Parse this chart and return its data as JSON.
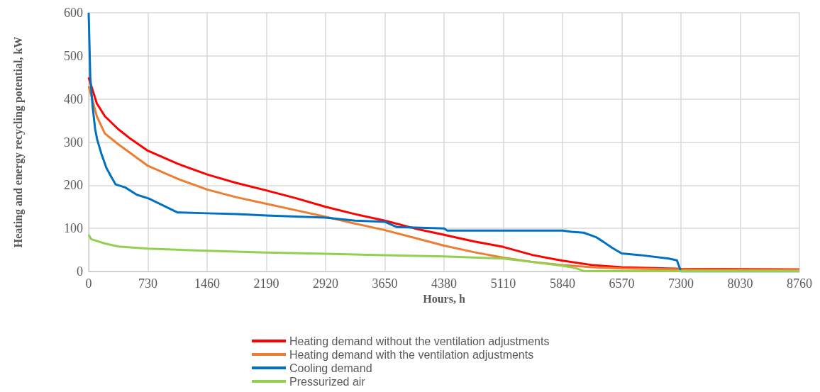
{
  "chart_data": {
    "type": "line",
    "xlabel": "Hours, h",
    "ylabel": "Heating and energy recycling potential, kW",
    "xlim": [
      0,
      8760
    ],
    "xticks": [
      0,
      730,
      1460,
      2190,
      2920,
      3650,
      4380,
      5110,
      5840,
      6570,
      7300,
      8030,
      8760
    ],
    "ylim": [
      0,
      600
    ],
    "yticks": [
      0,
      100,
      200,
      300,
      400,
      500,
      600
    ],
    "grid": true,
    "legend": "bottom",
    "marker": "none",
    "line_style": "solid",
    "series": [
      {
        "name": "Heating demand without the ventilation adjustments",
        "color": "#ff0000",
        "x": [
          0,
          50,
          100,
          200,
          365,
          500,
          730,
          1095,
          1460,
          1825,
          2190,
          2555,
          2920,
          3285,
          3650,
          4015,
          4380,
          4745,
          5110,
          5475,
          5840,
          6205,
          6570,
          7300,
          8760
        ],
        "values": [
          450,
          420,
          390,
          360,
          330,
          310,
          280,
          250,
          225,
          205,
          188,
          170,
          150,
          133,
          118,
          100,
          85,
          70,
          57,
          38,
          25,
          15,
          10,
          6,
          5
        ]
      },
      {
        "name": "Heating demand with the ventilation adjustments",
        "color": "#ed7d31",
        "x": [
          0,
          100,
          200,
          365,
          730,
          1095,
          1460,
          1825,
          2190,
          2555,
          2920,
          3285,
          3650,
          4015,
          4380,
          4745,
          5110,
          5475,
          5840,
          6205,
          6570,
          7300,
          8760
        ],
        "values": [
          430,
          360,
          320,
          295,
          245,
          215,
          190,
          172,
          157,
          142,
          127,
          111,
          96,
          78,
          60,
          45,
          32,
          22,
          15,
          10,
          7,
          5,
          4
        ]
      },
      {
        "name": "Cooling demand",
        "color": "#0070c0",
        "x": [
          0,
          20,
          50,
          80,
          105,
          157,
          219,
          280,
          332,
          450,
          594,
          743,
          1093,
          1460,
          1825,
          2190,
          2920,
          3285,
          3654,
          3800,
          4380,
          4420,
          5840,
          5950,
          6100,
          6250,
          6350,
          6450,
          6570,
          6800,
          7150,
          7250,
          7300,
          8760
        ],
        "values": [
          600,
          450,
          380,
          330,
          306,
          273,
          240,
          219,
          202,
          195,
          178,
          169,
          137,
          135,
          133,
          130,
          125,
          118,
          115,
          103,
          100,
          95,
          95,
          92,
          90,
          80,
          68,
          55,
          42,
          38,
          30,
          26,
          0,
          0
        ]
      },
      {
        "name": "Pressurized air",
        "color": "#92d050",
        "x": [
          0,
          30,
          200,
          365,
          730,
          1460,
          2190,
          2920,
          3650,
          4380,
          5110,
          5475,
          5840,
          6000,
          6100,
          8760
        ],
        "values": [
          85,
          75,
          65,
          58,
          53,
          48,
          44,
          41,
          38,
          35,
          30,
          22,
          13,
          8,
          1,
          1
        ]
      }
    ]
  }
}
